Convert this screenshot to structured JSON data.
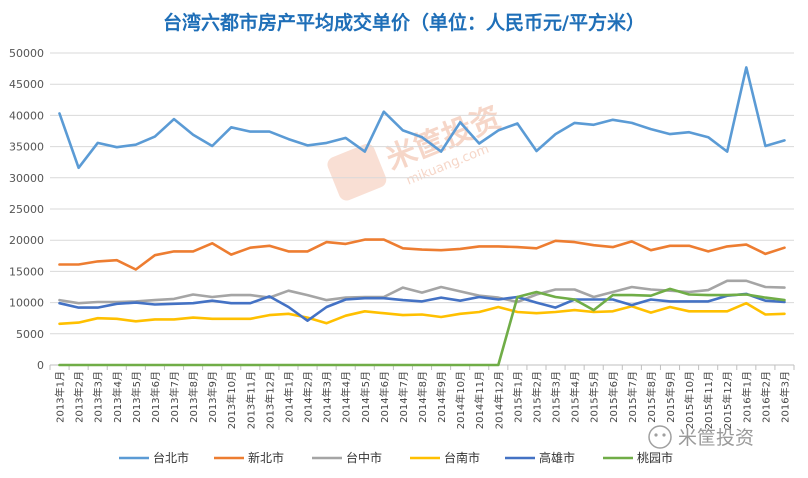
{
  "chart_data": {
    "type": "line",
    "title": "台湾六都市房产平均成交单价（单位：人民币元/平方米）",
    "ylim": [
      0,
      50000
    ],
    "yticks": [
      0,
      5000,
      10000,
      15000,
      20000,
      25000,
      30000,
      35000,
      40000,
      45000,
      50000
    ],
    "grid": true,
    "legend_position": "bottom",
    "categories": [
      "2013年1月",
      "2013年2月",
      "2013年3月",
      "2013年4月",
      "2013年5月",
      "2013年6月",
      "2013年7月",
      "2013年8月",
      "2013年9月",
      "2013年10月",
      "2013年11月",
      "2013年12月",
      "2014年1月",
      "2014年2月",
      "2014年3月",
      "2014年4月",
      "2014年5月",
      "2014年6月",
      "2014年7月",
      "2014年8月",
      "2014年9月",
      "2014年10月",
      "2014年11月",
      "2014年12月",
      "2015年1月",
      "2015年2月",
      "2015年3月",
      "2015年4月",
      "2015年5月",
      "2015年6月",
      "2015年7月",
      "2015年8月",
      "2015年9月",
      "2015年10月",
      "2015年11月",
      "2015年12月",
      "2016年1月",
      "2016年2月",
      "2016年3月"
    ],
    "series": [
      {
        "name": "台北市",
        "color": "#5b9bd5",
        "values": [
          40300,
          31600,
          35600,
          34900,
          35300,
          36600,
          39400,
          36900,
          35100,
          38100,
          37400,
          37400,
          36200,
          35200,
          35600,
          36400,
          34200,
          40600,
          37600,
          36500,
          34200,
          38900,
          35500,
          37600,
          38700,
          34300,
          37000,
          38800,
          38500,
          39300,
          38800,
          37800,
          37000,
          37300,
          36500,
          34200,
          47700,
          35100,
          36000
        ]
      },
      {
        "name": "新北市",
        "color": "#ed7d31",
        "values": [
          16100,
          16100,
          16600,
          16800,
          15300,
          17600,
          18200,
          18200,
          19500,
          17700,
          18800,
          19100,
          18200,
          18200,
          19700,
          19400,
          20100,
          20100,
          18700,
          18500,
          18400,
          18600,
          19000,
          19000,
          18900,
          18700,
          19900,
          19700,
          19200,
          18900,
          19800,
          18400,
          19100,
          19100,
          18200,
          19000,
          19300,
          17800,
          18800
        ]
      },
      {
        "name": "台中市",
        "color": "#a5a5a5",
        "values": [
          10400,
          9900,
          10100,
          10100,
          10200,
          10400,
          10600,
          11300,
          10900,
          11200,
          11200,
          10800,
          11900,
          11200,
          10400,
          10800,
          10900,
          10900,
          12400,
          11600,
          12500,
          11800,
          11100,
          10800,
          10100,
          11300,
          12100,
          12100,
          10900,
          11700,
          12500,
          12100,
          11900,
          11700,
          12000,
          13500,
          13500,
          12500,
          12400
        ]
      },
      {
        "name": "台南市",
        "color": "#ffc000",
        "values": [
          6600,
          6800,
          7500,
          7400,
          7000,
          7300,
          7300,
          7600,
          7400,
          7400,
          7400,
          8000,
          8200,
          7600,
          6700,
          7900,
          8600,
          8300,
          8000,
          8100,
          7700,
          8200,
          8500,
          9300,
          8500,
          8300,
          8500,
          8800,
          8500,
          8600,
          9400,
          8400,
          9300,
          8600,
          8600,
          8600,
          9900,
          8100,
          8200
        ]
      },
      {
        "name": "高雄市",
        "color": "#4472c4",
        "values": [
          9900,
          9200,
          9200,
          9800,
          10000,
          9700,
          9800,
          9900,
          10300,
          9900,
          9900,
          11000,
          9300,
          7100,
          9300,
          10500,
          10700,
          10700,
          10400,
          10200,
          10800,
          10300,
          10900,
          10500,
          10900,
          10000,
          9200,
          10500,
          10500,
          10500,
          9600,
          10500,
          10200,
          10200,
          10200,
          11100,
          11400,
          10300,
          10100
        ]
      },
      {
        "name": "桃园市",
        "color": "#70ad47",
        "values": [
          0,
          0,
          0,
          0,
          0,
          0,
          0,
          0,
          0,
          0,
          0,
          0,
          0,
          0,
          0,
          0,
          0,
          0,
          0,
          0,
          0,
          0,
          0,
          0,
          10900,
          11700,
          10900,
          10500,
          8800,
          11200,
          11200,
          11100,
          12200,
          11300,
          11200,
          11200,
          11300,
          10800,
          10400
        ]
      }
    ]
  },
  "watermark": {
    "logo_text": "米筐投资",
    "logo_sub": "mikuang.com",
    "brand": "米筐投资"
  }
}
